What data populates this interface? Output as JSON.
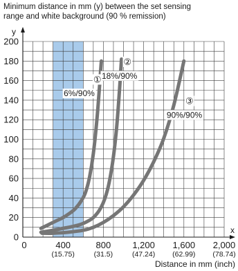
{
  "caption": {
    "line1": "Minimum distance in mm (y) between the set sensing",
    "line2": "range and white background (90 % remission)"
  },
  "chart_data": {
    "type": "line",
    "title": "",
    "ylabel": "y",
    "xlabel": "Distance in mm (inch)",
    "x_axis_letter": "x",
    "xlim": [
      0,
      2000
    ],
    "ylim": [
      0,
      200
    ],
    "grid": true,
    "y_ticks": [
      0,
      20,
      40,
      60,
      80,
      100,
      120,
      140,
      160,
      180,
      200
    ],
    "x_ticks": [
      {
        "value": 0,
        "label": "0",
        "sub": ""
      },
      {
        "value": 400,
        "label": "400",
        "sub": "(15.75)"
      },
      {
        "value": 800,
        "label": "800",
        "sub": "(31.5)"
      },
      {
        "value": 1200,
        "label": "1,200",
        "sub": "(47.24)"
      },
      {
        "value": 1600,
        "label": "1,600",
        "sub": "(62.99)"
      },
      {
        "value": 2000,
        "label": "2,000",
        "sub": "(78.74)"
      }
    ],
    "shaded_band": {
      "x_from": 300,
      "x_to": 600,
      "color": "#a9cbeb"
    },
    "series": [
      {
        "marker": "①",
        "name": "6%/90%",
        "color": "#767676",
        "label_anchor": {
          "x": 560,
          "y": 144
        },
        "marker_anchor": {
          "x": 740,
          "y": 158
        },
        "x": [
          180,
          260,
          340,
          400,
          460,
          520,
          580,
          620,
          660,
          700,
          740,
          780
        ],
        "y": [
          9,
          13,
          17,
          20,
          24,
          29,
          37,
          45,
          60,
          85,
          125,
          180
        ]
      },
      {
        "marker": "②",
        "name": "18%/90%",
        "color": "#767676",
        "label_anchor": {
          "x": 960,
          "y": 162
        },
        "marker_anchor": {
          "x": 1040,
          "y": 176
        },
        "x": [
          180,
          300,
          400,
          500,
          600,
          700,
          780,
          840,
          890,
          930,
          960,
          980
        ],
        "y": [
          5,
          7,
          9,
          11,
          14,
          20,
          31,
          48,
          75,
          110,
          150,
          182
        ]
      },
      {
        "marker": "③",
        "name": "90%/90%",
        "color": "#767676",
        "label_anchor": {
          "x": 1605,
          "y": 122
        },
        "marker_anchor": {
          "x": 1655,
          "y": 136
        },
        "x": [
          190,
          300,
          450,
          600,
          700,
          800,
          900,
          1000,
          1100,
          1200,
          1300,
          1400,
          1500,
          1600
        ],
        "y": [
          4,
          4,
          5,
          7,
          10,
          15,
          22,
          31,
          43,
          58,
          77,
          101,
          135,
          180
        ]
      }
    ]
  }
}
